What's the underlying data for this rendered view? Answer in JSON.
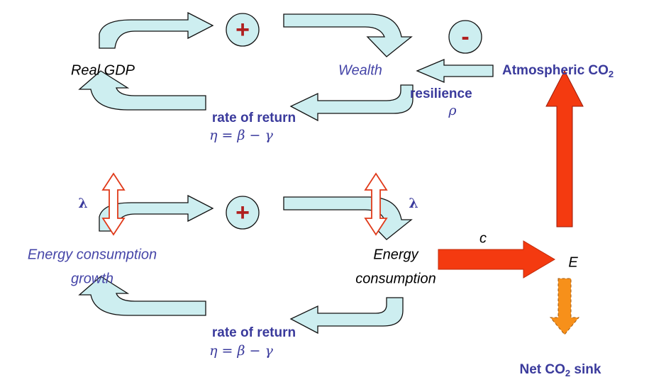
{
  "signs": [
    "+",
    "-",
    "+"
  ],
  "labels": {
    "real_gdp": "Real GDP",
    "wealth": "Wealth",
    "atmospheric_co2": {
      "text": "Atmospheric CO",
      "sub": "2"
    },
    "resilience": "resilience",
    "rho": "ρ",
    "top_rate": "rate of return",
    "top_eta": "η = β − γ",
    "lambda_left": "λ",
    "lambda_right": "λ",
    "energy_growth": [
      "Energy consumption",
      "growth"
    ],
    "energy_consumption": [
      "Energy",
      "consumption"
    ],
    "c": "c",
    "e": "E",
    "net_sink": {
      "text": "Net CO",
      "sub": "2",
      "tail": " sink"
    },
    "bottom_rate": "rate of return",
    "bottom_eta": "η = β − γ"
  }
}
